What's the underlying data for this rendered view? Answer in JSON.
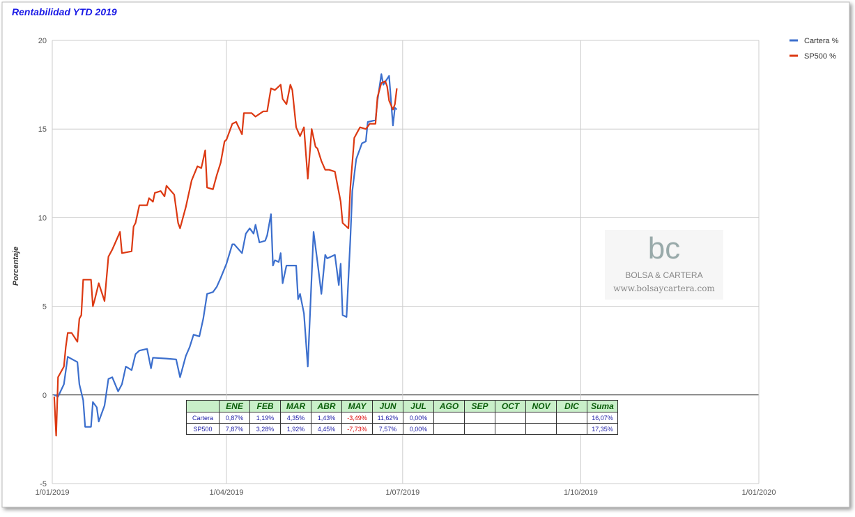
{
  "chart_data": {
    "type": "line",
    "title": "Rentabilidad YTD 2019",
    "y_label": "Porcentaje",
    "grid": true,
    "legend": "right",
    "xlim": [
      "2019-01-01",
      "2020-01-01"
    ],
    "xticks": [
      {
        "value": "2019-01-01",
        "label": "1/01/2019"
      },
      {
        "value": "2019-04-01",
        "label": "1/04/2019"
      },
      {
        "value": "2019-07-01",
        "label": "1/07/2019"
      },
      {
        "value": "2019-10-01",
        "label": "1/10/2019"
      },
      {
        "value": "2020-01-01",
        "label": "1/01/2020"
      }
    ],
    "ylim": [
      -5,
      20
    ],
    "yticks": [
      -5,
      0,
      5,
      10,
      15,
      20
    ],
    "series": [
      {
        "name": "Cartera %",
        "color": "#3c6fcd",
        "x": [
          "2019-01-02",
          "2019-01-04",
          "2019-01-07",
          "2019-01-09",
          "2019-01-14",
          "2019-01-15",
          "2019-01-17",
          "2019-01-18",
          "2019-01-21",
          "2019-01-22",
          "2019-01-24",
          "2019-01-25",
          "2019-01-28",
          "2019-01-30",
          "2019-02-01",
          "2019-02-04",
          "2019-02-06",
          "2019-02-08",
          "2019-02-11",
          "2019-02-13",
          "2019-02-15",
          "2019-02-19",
          "2019-02-21",
          "2019-02-22",
          "2019-03-01",
          "2019-03-06",
          "2019-03-08",
          "2019-03-11",
          "2019-03-13",
          "2019-03-15",
          "2019-03-18",
          "2019-03-20",
          "2019-03-22",
          "2019-03-25",
          "2019-03-27",
          "2019-03-29",
          "2019-04-01",
          "2019-04-04",
          "2019-04-05",
          "2019-04-09",
          "2019-04-11",
          "2019-04-13",
          "2019-04-15",
          "2019-04-16",
          "2019-04-18",
          "2019-04-21",
          "2019-04-22",
          "2019-04-24",
          "2019-04-25",
          "2019-04-26",
          "2019-04-28",
          "2019-04-29",
          "2019-04-30",
          "2019-05-02",
          "2019-05-07",
          "2019-05-08",
          "2019-05-09",
          "2019-05-11",
          "2019-05-13",
          "2019-05-16",
          "2019-05-18",
          "2019-05-20",
          "2019-05-22",
          "2019-05-23",
          "2019-05-27",
          "2019-05-29",
          "2019-05-30",
          "2019-05-31",
          "2019-06-02",
          "2019-06-04",
          "2019-06-05",
          "2019-06-07",
          "2019-06-10",
          "2019-06-12",
          "2019-06-13",
          "2019-06-17",
          "2019-06-18",
          "2019-06-20",
          "2019-06-21",
          "2019-06-24",
          "2019-06-26",
          "2019-06-27",
          "2019-06-28"
        ],
        "values": [
          0,
          -0.1,
          0.6,
          2.15,
          1.85,
          0.6,
          -0.3,
          -1.8,
          -1.8,
          -0.4,
          -0.7,
          -1.5,
          -0.6,
          0.9,
          1.0,
          0.2,
          0.6,
          1.6,
          1.4,
          2.3,
          2.5,
          2.6,
          1.5,
          2.1,
          2.05,
          2.0,
          1.0,
          2.2,
          2.7,
          3.4,
          3.3,
          4.3,
          5.7,
          5.8,
          6.1,
          6.6,
          7.4,
          8.5,
          8.5,
          8.0,
          9.1,
          9.4,
          9.1,
          9.6,
          8.6,
          8.7,
          9.0,
          10.2,
          7.3,
          7.6,
          7.5,
          8.0,
          6.3,
          7.3,
          7.3,
          5.4,
          5.7,
          4.6,
          1.6,
          9.2,
          7.5,
          5.7,
          7.9,
          7.7,
          7.9,
          6.2,
          7.4,
          4.5,
          4.4,
          8.8,
          11.5,
          13.3,
          14.2,
          14.3,
          15.4,
          15.5,
          16.6,
          18.1,
          17.5,
          18.0,
          15.2,
          16.2,
          16.1
        ]
      },
      {
        "name": "SP500 %",
        "color": "#dc3912",
        "x": [
          "2019-01-02",
          "2019-01-03",
          "2019-01-04",
          "2019-01-07",
          "2019-01-08",
          "2019-01-09",
          "2019-01-11",
          "2019-01-14",
          "2019-01-15",
          "2019-01-16",
          "2019-01-17",
          "2019-01-21",
          "2019-01-22",
          "2019-01-23",
          "2019-01-25",
          "2019-01-28",
          "2019-01-30",
          "2019-02-01",
          "2019-02-03",
          "2019-02-05",
          "2019-02-06",
          "2019-02-11",
          "2019-02-12",
          "2019-02-13",
          "2019-02-15",
          "2019-02-19",
          "2019-02-20",
          "2019-02-22",
          "2019-02-23",
          "2019-02-26",
          "2019-02-28",
          "2019-03-01",
          "2019-03-05",
          "2019-03-07",
          "2019-03-08",
          "2019-03-11",
          "2019-03-14",
          "2019-03-17",
          "2019-03-19",
          "2019-03-21",
          "2019-03-22",
          "2019-03-25",
          "2019-03-27",
          "2019-03-29",
          "2019-03-31",
          "2019-04-01",
          "2019-04-04",
          "2019-04-06",
          "2019-04-09",
          "2019-04-10",
          "2019-04-14",
          "2019-04-16",
          "2019-04-20",
          "2019-04-22",
          "2019-04-24",
          "2019-04-26",
          "2019-04-29",
          "2019-04-30",
          "2019-05-02",
          "2019-05-04",
          "2019-05-05",
          "2019-05-07",
          "2019-05-09",
          "2019-05-11",
          "2019-05-13",
          "2019-05-15",
          "2019-05-17",
          "2019-05-18",
          "2019-05-20",
          "2019-05-22",
          "2019-05-24",
          "2019-05-27",
          "2019-05-30",
          "2019-05-31",
          "2019-06-03",
          "2019-06-04",
          "2019-06-06",
          "2019-06-08",
          "2019-06-09",
          "2019-06-12",
          "2019-06-14",
          "2019-06-17",
          "2019-06-18",
          "2019-06-20",
          "2019-06-22",
          "2019-06-23",
          "2019-06-24",
          "2019-06-26",
          "2019-06-27",
          "2019-06-28"
        ],
        "values": [
          -0.1,
          -2.3,
          1.0,
          1.6,
          2.7,
          3.5,
          3.5,
          3.0,
          4.3,
          4.5,
          6.5,
          6.5,
          5.0,
          5.4,
          6.3,
          5.3,
          7.8,
          8.2,
          8.7,
          9.2,
          8.0,
          8.1,
          9.5,
          9.7,
          10.7,
          10.7,
          11.1,
          10.9,
          11.4,
          11.5,
          11.2,
          11.8,
          11.3,
          9.7,
          9.4,
          10.6,
          12.1,
          12.9,
          12.8,
          13.8,
          11.7,
          11.6,
          12.4,
          13.1,
          14.3,
          14.4,
          15.3,
          15.4,
          14.7,
          15.9,
          15.9,
          15.7,
          16.0,
          16.0,
          17.3,
          17.2,
          17.5,
          16.7,
          16.4,
          17.5,
          17.2,
          15.1,
          14.6,
          15.1,
          12.2,
          15.0,
          14.0,
          13.9,
          13.2,
          12.7,
          12.7,
          12.6,
          10.9,
          9.7,
          9.4,
          11.7,
          14.5,
          14.9,
          15.1,
          15.0,
          15.3,
          15.3,
          16.8,
          17.6,
          17.7,
          17.4,
          16.6,
          16.1,
          16.4,
          17.3
        ]
      }
    ]
  },
  "table": {
    "header": [
      null,
      "ENE",
      "FEB",
      "MAR",
      "ABR",
      "MAY",
      "JUN",
      "JUL",
      "AGO",
      "SEP",
      "OCT",
      "NOV",
      "DIC",
      "Suma"
    ],
    "rows": [
      [
        "Cartera",
        "0,87%",
        "1,19%",
        "4,35%",
        "1,43%",
        "-3,49%",
        "11,62%",
        "0,00%",
        null,
        null,
        null,
        null,
        null,
        "16,07%"
      ],
      [
        "SP500",
        "7,87%",
        "3,28%",
        "1,92%",
        "4,45%",
        "-7,73%",
        "7,57%",
        "0,00%",
        null,
        null,
        null,
        null,
        null,
        "17,35%"
      ]
    ]
  },
  "watermark": {
    "logo": "bc",
    "name": "BOLSA & CARTERA",
    "url": "www.bolsaycartera.com"
  }
}
